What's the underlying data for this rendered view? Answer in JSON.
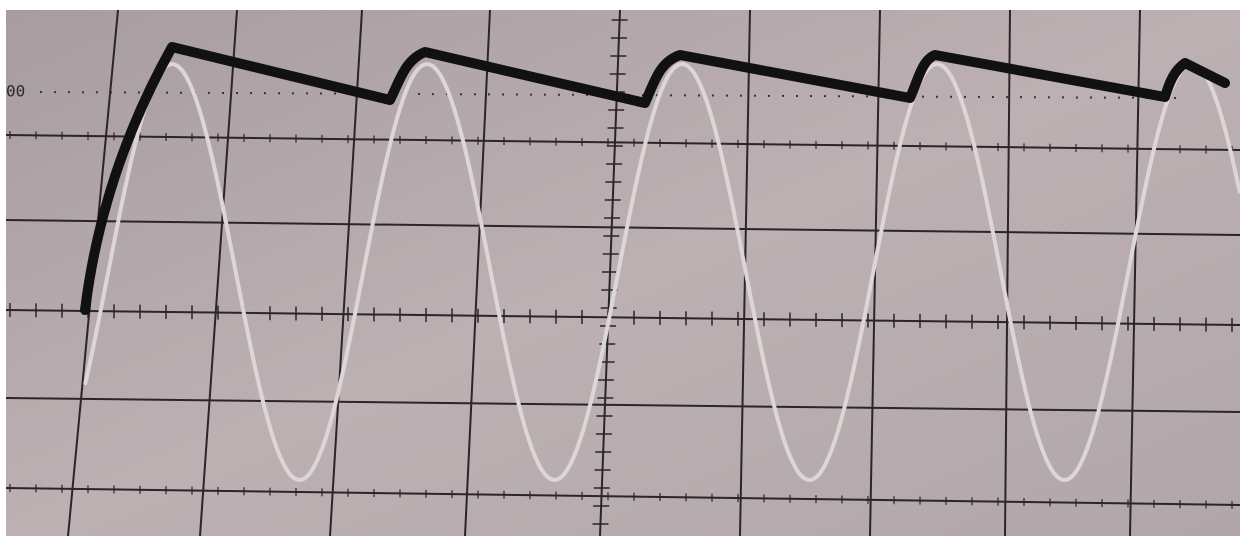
{
  "screen": {
    "label": "00"
  }
}
